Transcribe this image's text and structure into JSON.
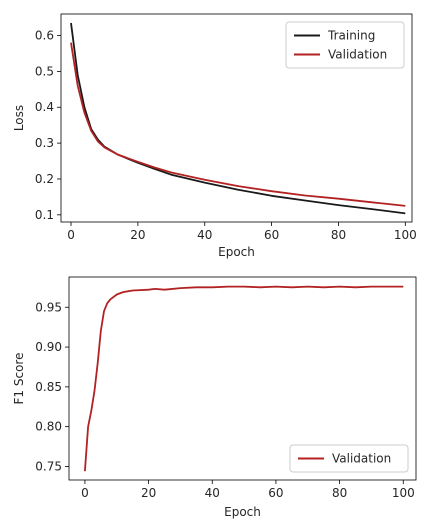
{
  "chart_data": [
    {
      "type": "line",
      "xlabel": "Epoch",
      "ylabel": "Loss",
      "xlim": [
        -3,
        102
      ],
      "ylim": [
        0.08,
        0.66
      ],
      "xticks": [
        0,
        20,
        40,
        60,
        80,
        100
      ],
      "yticks": [
        0.1,
        0.2,
        0.3,
        0.4,
        0.5,
        0.6
      ],
      "ytick_labels": [
        "0.1",
        "0.2",
        "0.3",
        "0.4",
        "0.5",
        "0.6"
      ],
      "legend": "top-right",
      "grid": false,
      "series": [
        {
          "name": "Training",
          "color": "#1a1a1a",
          "x": [
            0,
            2,
            4,
            6,
            8,
            10,
            14,
            20,
            25,
            30,
            40,
            50,
            60,
            70,
            80,
            90,
            100
          ],
          "y": [
            0.635,
            0.49,
            0.4,
            0.34,
            0.31,
            0.29,
            0.268,
            0.245,
            0.228,
            0.212,
            0.19,
            0.17,
            0.153,
            0.14,
            0.127,
            0.116,
            0.104
          ]
        },
        {
          "name": "Validation",
          "color": "#b22222",
          "x": [
            0,
            2,
            4,
            6,
            8,
            10,
            14,
            20,
            25,
            30,
            40,
            50,
            60,
            70,
            80,
            90,
            100
          ],
          "y": [
            0.58,
            0.46,
            0.385,
            0.335,
            0.305,
            0.288,
            0.268,
            0.248,
            0.232,
            0.218,
            0.198,
            0.18,
            0.166,
            0.154,
            0.145,
            0.135,
            0.125
          ]
        }
      ]
    },
    {
      "type": "line",
      "xlabel": "Epoch",
      "ylabel": "F1 Score",
      "xlim": [
        -5,
        104
      ],
      "ylim": [
        0.733,
        0.988
      ],
      "xticks": [
        0,
        20,
        40,
        60,
        80,
        100
      ],
      "yticks": [
        0.75,
        0.8,
        0.85,
        0.9,
        0.95
      ],
      "ytick_labels": [
        "0.75",
        "0.80",
        "0.85",
        "0.90",
        "0.95"
      ],
      "legend": "bottom-right",
      "grid": false,
      "series": [
        {
          "name": "Validation",
          "color": "#b22222",
          "x": [
            0,
            1,
            2,
            3,
            4,
            5,
            6,
            7,
            8,
            10,
            12,
            15,
            20,
            22,
            25,
            30,
            35,
            40,
            45,
            50,
            55,
            60,
            65,
            70,
            75,
            80,
            85,
            90,
            95,
            100
          ],
          "y": [
            0.744,
            0.8,
            0.82,
            0.845,
            0.88,
            0.92,
            0.945,
            0.955,
            0.96,
            0.966,
            0.969,
            0.971,
            0.972,
            0.973,
            0.972,
            0.974,
            0.975,
            0.975,
            0.976,
            0.976,
            0.975,
            0.976,
            0.975,
            0.976,
            0.975,
            0.976,
            0.975,
            0.976,
            0.976,
            0.976
          ]
        }
      ]
    }
  ]
}
